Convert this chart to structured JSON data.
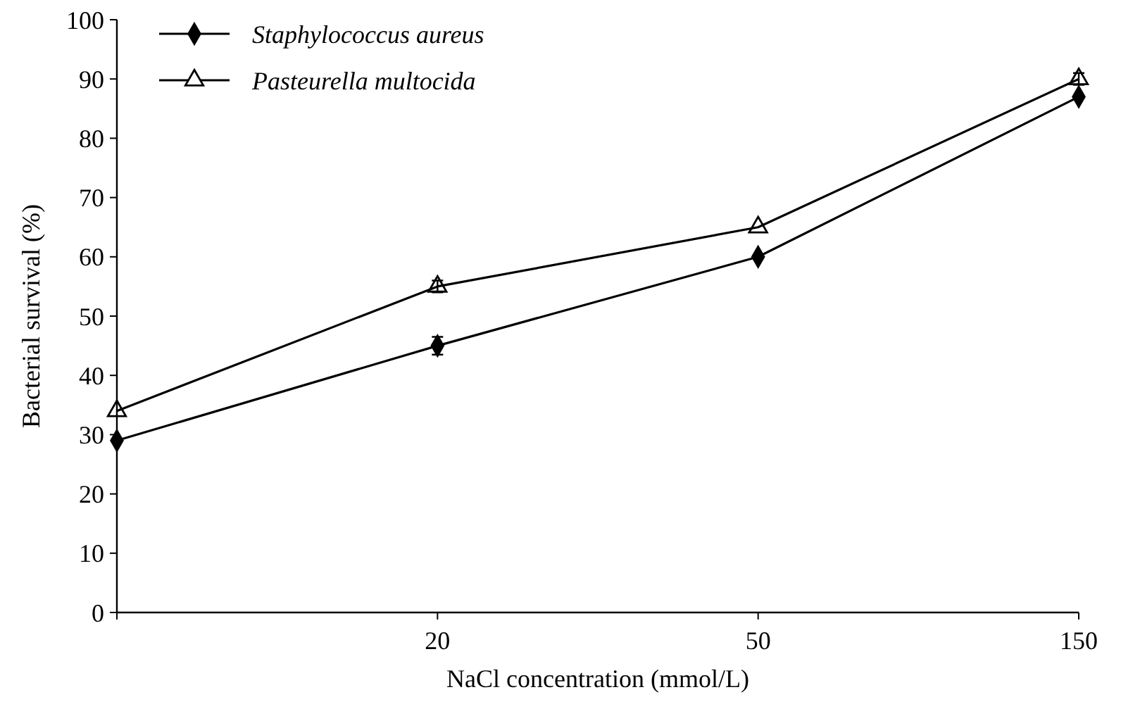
{
  "chart_data": {
    "type": "line",
    "xlabel": "NaCl concentration (mmol/L)",
    "ylabel": "Bacterial survival (%)",
    "categories": [
      null,
      "20",
      "50",
      "150"
    ],
    "series": [
      {
        "name": "Staphylococcus aureus",
        "color": "#000000",
        "marker": "diamond",
        "values": [
          29,
          45,
          60,
          87
        ],
        "errors": [
          null,
          1.5,
          null,
          null
        ]
      },
      {
        "name": "Pasteurella multocida",
        "color": "#000000",
        "marker": "triangle",
        "values": [
          34,
          55,
          65,
          90
        ],
        "errors": [
          null,
          1,
          null,
          1
        ]
      }
    ],
    "ylim": [
      0,
      100
    ],
    "yticks": [
      0,
      10,
      20,
      30,
      40,
      50,
      60,
      70,
      80,
      90,
      100
    ],
    "grid": false,
    "legend": "top left",
    "line_style": "solid"
  }
}
